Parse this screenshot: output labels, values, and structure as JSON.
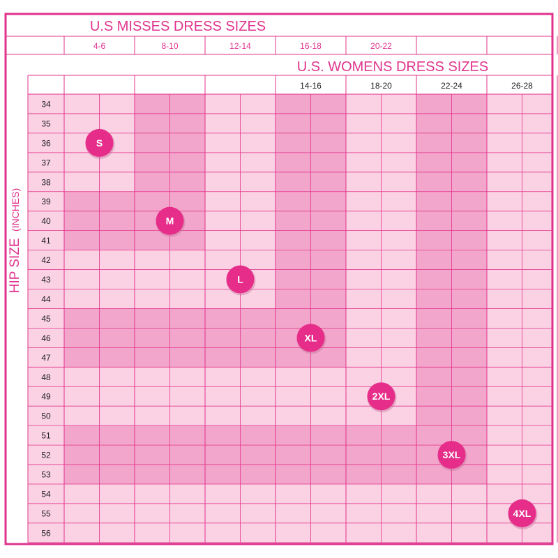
{
  "chart_data": {
    "type": "table",
    "title_misses": "U.S MISSES DRESS SIZES",
    "title_womens": "U.S. WOMENS DRESS SIZES",
    "ylabel": "HIP SIZE",
    "ylabel_unit": "(INCHES)",
    "misses_sizes": [
      "4-6",
      "8-10",
      "12-14",
      "16-18",
      "20-22"
    ],
    "womens_sizes": [
      "14-16",
      "18-20",
      "22-24",
      "26-28"
    ],
    "hip_sizes": [
      34,
      35,
      36,
      37,
      38,
      39,
      40,
      41,
      42,
      43,
      44,
      45,
      46,
      47,
      48,
      49,
      50,
      51,
      52,
      53,
      54,
      55,
      56
    ],
    "size_bands": [
      {
        "label": "S",
        "hip_from": 34,
        "hip_to": 38,
        "column": 1
      },
      {
        "label": "M",
        "hip_from": 39,
        "hip_to": 41,
        "column": 2
      },
      {
        "label": "L",
        "hip_from": 42,
        "hip_to": 44,
        "column": 3
      },
      {
        "label": "XL",
        "hip_from": 45,
        "hip_to": 47,
        "column": 4
      },
      {
        "label": "2XL",
        "hip_from": 48,
        "hip_to": 50,
        "column": 5
      },
      {
        "label": "3XL",
        "hip_from": 51,
        "hip_to": 53,
        "column": 6
      },
      {
        "label": "4XL",
        "hip_from": 54,
        "hip_to": 56,
        "column": 7
      }
    ],
    "colors": {
      "border": "#e0338e",
      "grid": "#e3338b",
      "background": "#ffffff",
      "light_fill": "#fad2e4",
      "dark_fill": "#f3a6cb",
      "badge": "#e52d89",
      "badge_text": "#ffffff",
      "text": "#e0338e"
    }
  }
}
